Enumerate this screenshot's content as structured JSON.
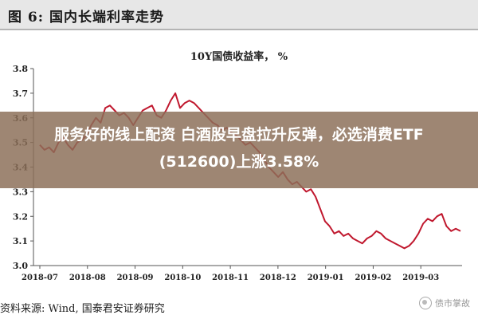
{
  "figure_header": "图 6:  国内长端利率走势",
  "chart_data": {
    "type": "line",
    "title": "10Y国债收益率， %",
    "xlabel": "",
    "ylabel": "",
    "ylim": [
      3.0,
      3.8
    ],
    "yticks": [
      3.0,
      3.1,
      3.2,
      3.3,
      3.4,
      3.5,
      3.6,
      3.7,
      3.8
    ],
    "xticks": [
      "2018-07",
      "2018-08",
      "2018-09",
      "2018-10",
      "2018-11",
      "2018-12",
      "2019-01",
      "2019-02",
      "2019-03"
    ],
    "grid": false,
    "legend": "none",
    "series": [
      {
        "color": "#c0182e",
        "values": [
          3.49,
          3.47,
          3.48,
          3.46,
          3.5,
          3.52,
          3.49,
          3.47,
          3.5,
          3.51,
          3.53,
          3.57,
          3.6,
          3.58,
          3.64,
          3.65,
          3.63,
          3.61,
          3.62,
          3.6,
          3.57,
          3.6,
          3.63,
          3.64,
          3.65,
          3.61,
          3.6,
          3.63,
          3.67,
          3.7,
          3.64,
          3.66,
          3.67,
          3.66,
          3.64,
          3.62,
          3.6,
          3.58,
          3.57,
          3.55,
          3.56,
          3.54,
          3.53,
          3.51,
          3.49,
          3.5,
          3.48,
          3.46,
          3.43,
          3.4,
          3.38,
          3.36,
          3.38,
          3.35,
          3.33,
          3.34,
          3.32,
          3.3,
          3.31,
          3.28,
          3.23,
          3.18,
          3.16,
          3.13,
          3.14,
          3.12,
          3.13,
          3.11,
          3.1,
          3.09,
          3.11,
          3.12,
          3.14,
          3.13,
          3.11,
          3.1,
          3.09,
          3.08,
          3.07,
          3.08,
          3.1,
          3.13,
          3.17,
          3.19,
          3.18,
          3.2,
          3.21,
          3.16,
          3.14,
          3.15,
          3.14
        ]
      }
    ]
  },
  "overlay": {
    "line1": "服务好的线上配资 白酒股早盘拉升反弹，必选消费ETF",
    "line2": "(512600)上涨3.58%"
  },
  "source": "资料来源:  Wind,  国泰君安证券研究",
  "watermark": "债市掌故"
}
